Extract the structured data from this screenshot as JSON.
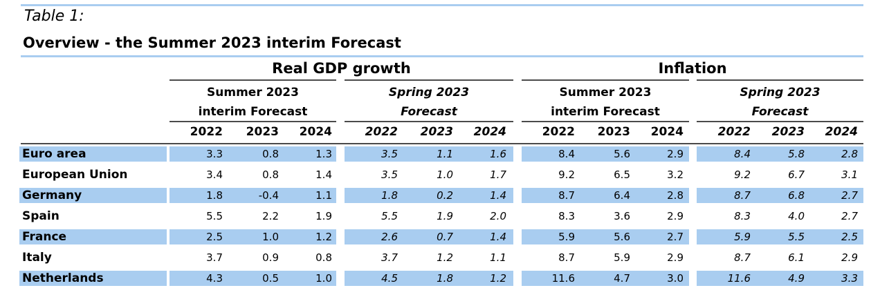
{
  "caption": "Table 1:",
  "title": "Overview - the Summer 2023 interim Forecast",
  "groups": [
    {
      "title": "Real GDP growth",
      "sub": [
        {
          "line1": "Summer 2023",
          "line2": "interim Forecast",
          "italic": false
        },
        {
          "line1": "Spring 2023",
          "line2": "Forecast",
          "italic": true
        }
      ]
    },
    {
      "title": "Inflation",
      "sub": [
        {
          "line1": "Summer 2023",
          "line2": "interim Forecast",
          "italic": false
        },
        {
          "line1": "Spring 2023",
          "line2": "Forecast",
          "italic": true
        }
      ]
    }
  ],
  "years": [
    "2022",
    "2023",
    "2024"
  ],
  "rows": [
    {
      "country": "Euro area",
      "gdp_summer": [
        "3.3",
        "0.8",
        "1.3"
      ],
      "gdp_spring": [
        "3.5",
        "1.1",
        "1.6"
      ],
      "inf_summer": [
        "8.4",
        "5.6",
        "2.9"
      ],
      "inf_spring": [
        "8.4",
        "5.8",
        "2.8"
      ]
    },
    {
      "country": "European Union",
      "gdp_summer": [
        "3.4",
        "0.8",
        "1.4"
      ],
      "gdp_spring": [
        "3.5",
        "1.0",
        "1.7"
      ],
      "inf_summer": [
        "9.2",
        "6.5",
        "3.2"
      ],
      "inf_spring": [
        "9.2",
        "6.7",
        "3.1"
      ]
    },
    {
      "country": "Germany",
      "gdp_summer": [
        "1.8",
        "-0.4",
        "1.1"
      ],
      "gdp_spring": [
        "1.8",
        "0.2",
        "1.4"
      ],
      "inf_summer": [
        "8.7",
        "6.4",
        "2.8"
      ],
      "inf_spring": [
        "8.7",
        "6.8",
        "2.7"
      ]
    },
    {
      "country": "Spain",
      "gdp_summer": [
        "5.5",
        "2.2",
        "1.9"
      ],
      "gdp_spring": [
        "5.5",
        "1.9",
        "2.0"
      ],
      "inf_summer": [
        "8.3",
        "3.6",
        "2.9"
      ],
      "inf_spring": [
        "8.3",
        "4.0",
        "2.7"
      ]
    },
    {
      "country": "France",
      "gdp_summer": [
        "2.5",
        "1.0",
        "1.2"
      ],
      "gdp_spring": [
        "2.6",
        "0.7",
        "1.4"
      ],
      "inf_summer": [
        "5.9",
        "5.6",
        "2.7"
      ],
      "inf_spring": [
        "5.9",
        "5.5",
        "2.5"
      ]
    },
    {
      "country": "Italy",
      "gdp_summer": [
        "3.7",
        "0.9",
        "0.8"
      ],
      "gdp_spring": [
        "3.7",
        "1.2",
        "1.1"
      ],
      "inf_summer": [
        "8.7",
        "5.9",
        "2.9"
      ],
      "inf_spring": [
        "8.7",
        "6.1",
        "2.9"
      ]
    },
    {
      "country": "Netherlands",
      "gdp_summer": [
        "4.3",
        "0.5",
        "1.0"
      ],
      "gdp_spring": [
        "4.5",
        "1.8",
        "1.2"
      ],
      "inf_summer": [
        "11.6",
        "4.7",
        "3.0"
      ],
      "inf_spring": [
        "11.6",
        "4.9",
        "3.3"
      ]
    }
  ],
  "colors": {
    "shade": "#a9cdf0",
    "rule": "#4a4a4a"
  }
}
